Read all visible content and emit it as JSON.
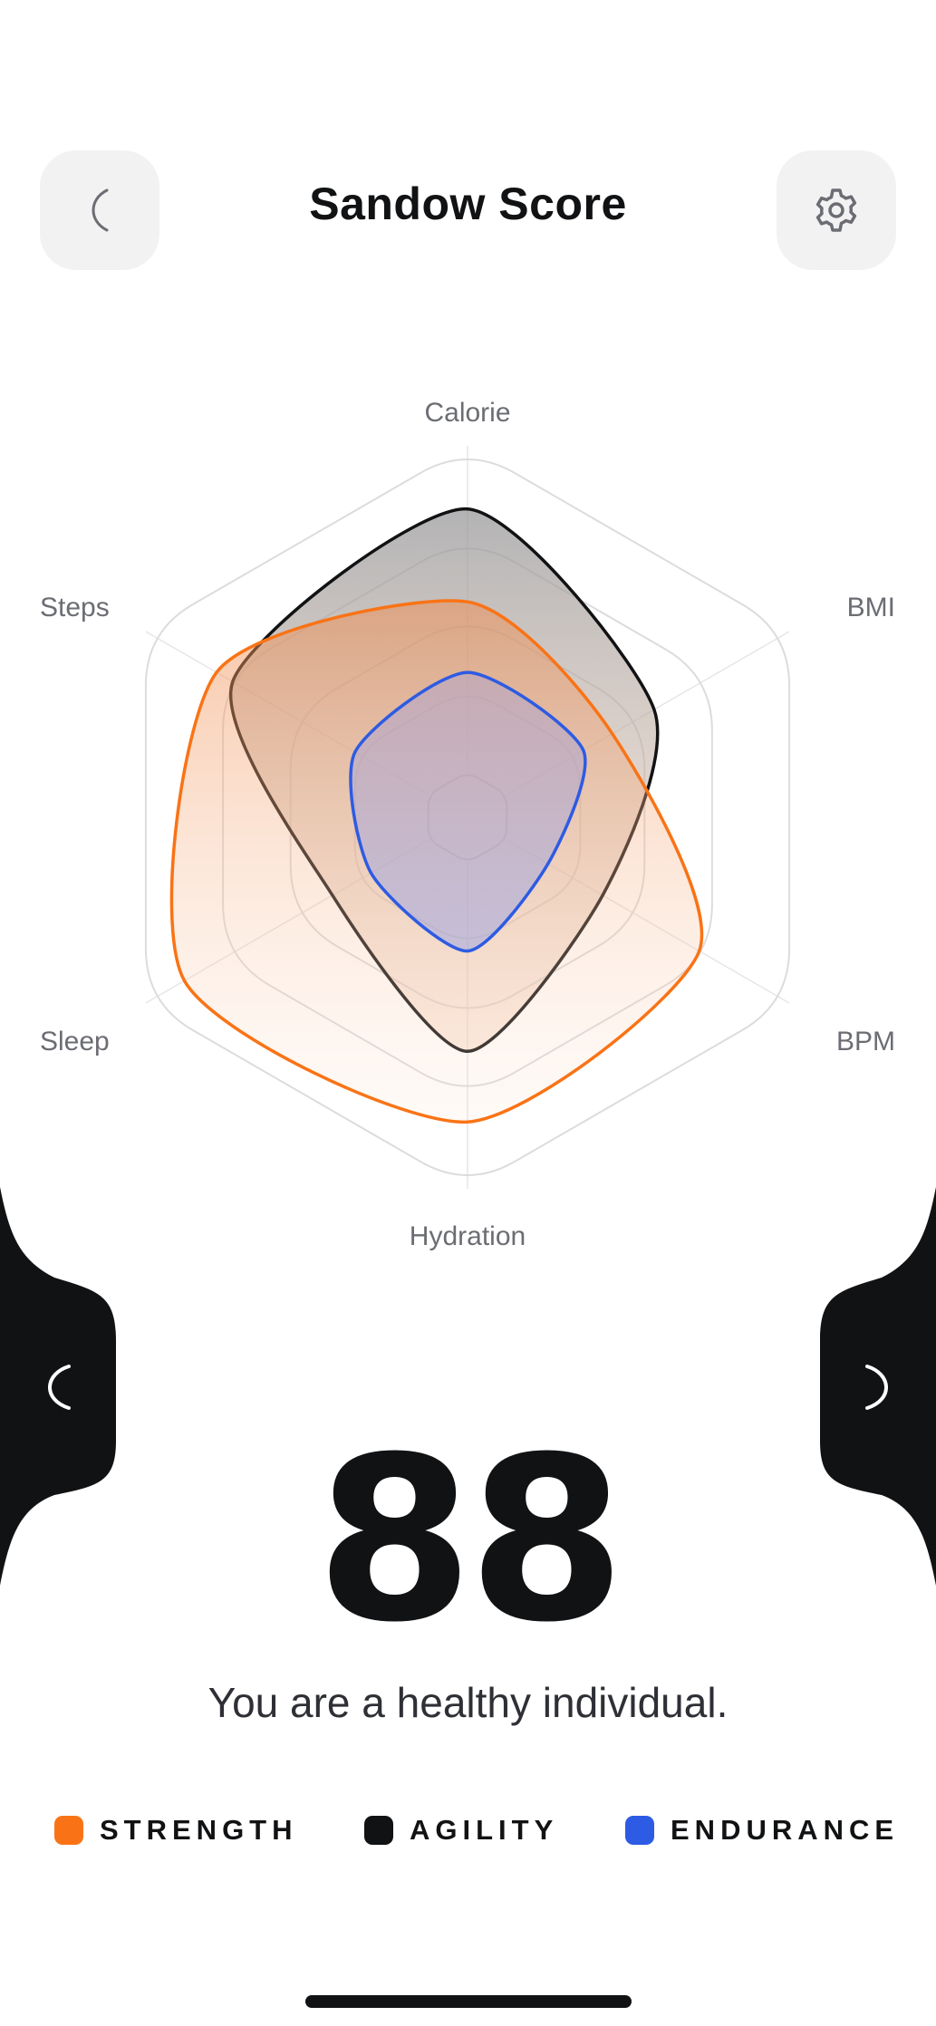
{
  "header": {
    "title": "Sandow Score",
    "back_icon": "chevron-left-icon",
    "settings_icon": "gear-icon"
  },
  "chart_data": {
    "type": "radar",
    "axes": [
      "Calorie",
      "BMI",
      "BPM",
      "Hydration",
      "Sleep",
      "Steps"
    ],
    "range": [
      0,
      100
    ],
    "rings": 4,
    "series": [
      {
        "name": "STRENGTH",
        "color": "#f97316",
        "values": [
          58,
          45,
          72,
          82,
          88,
          78
        ]
      },
      {
        "name": "AGILITY",
        "color": "#111214",
        "values": [
          83,
          58,
          42,
          63,
          42,
          73
        ]
      },
      {
        "name": "ENDURANCE",
        "color": "#2d5be3",
        "values": [
          39,
          36,
          25,
          36,
          30,
          35
        ]
      }
    ]
  },
  "nav": {
    "prev_icon": "chevron-left-icon",
    "next_icon": "chevron-right-icon"
  },
  "score": {
    "value": "88",
    "message": "You are a healthy individual."
  },
  "legend": [
    {
      "label": "STRENGTH",
      "color": "#f97316"
    },
    {
      "label": "AGILITY",
      "color": "#111214"
    },
    {
      "label": "ENDURANCE",
      "color": "#2d5be3"
    }
  ]
}
